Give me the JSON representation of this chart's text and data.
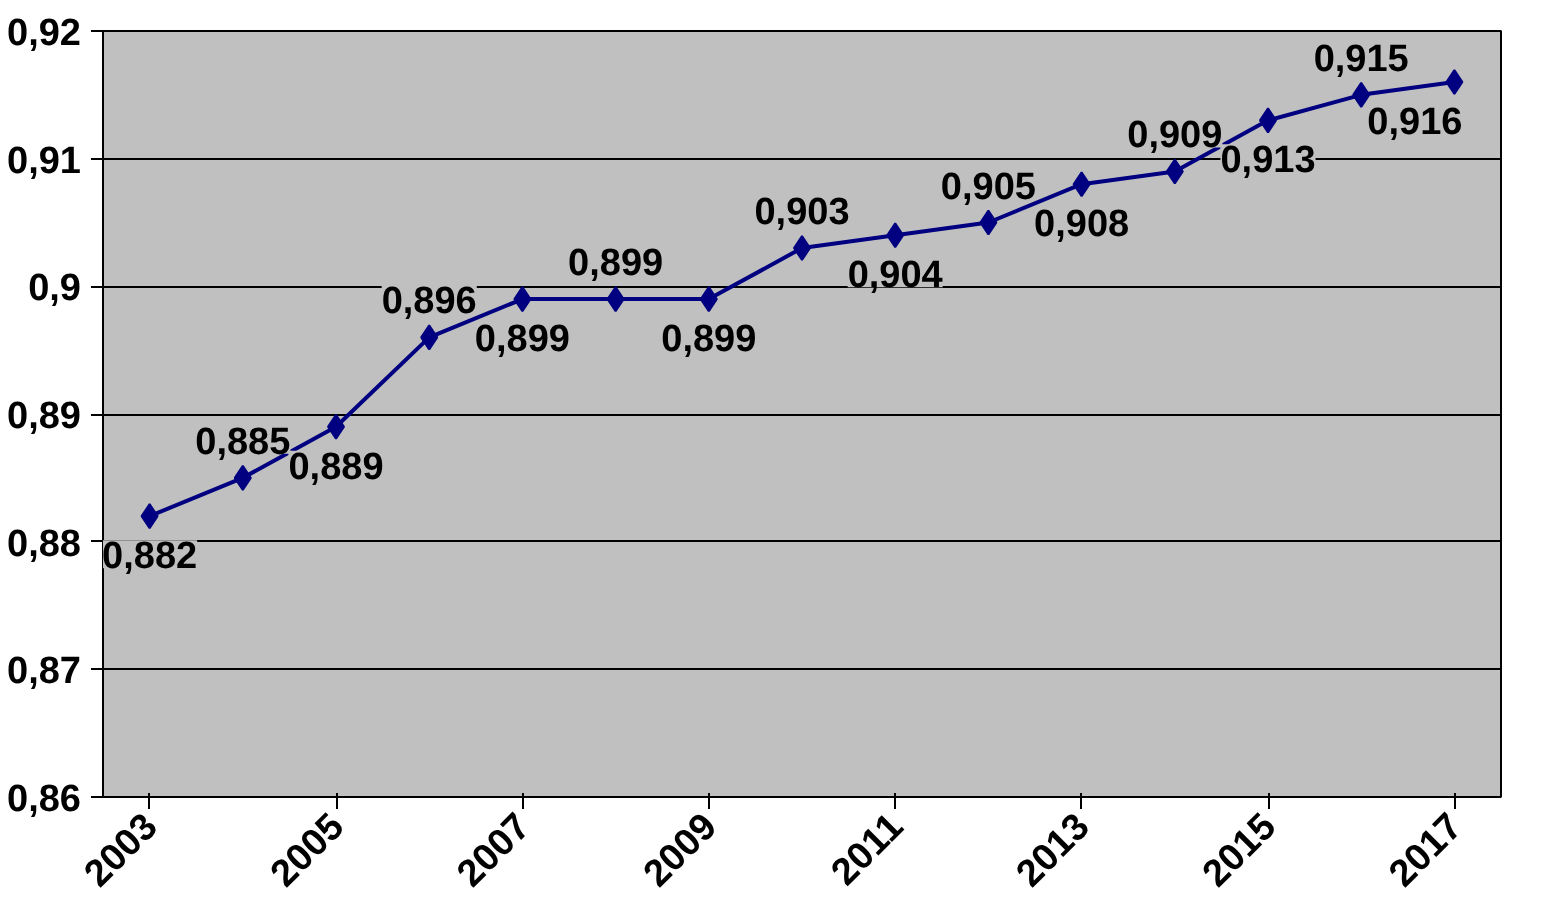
{
  "chart_data": {
    "type": "line",
    "categories": [
      "2003",
      null,
      "2005",
      null,
      "2007",
      null,
      "2009",
      null,
      "2011",
      null,
      "2013",
      null,
      "2015",
      null,
      "2017"
    ],
    "series": [
      {
        "color": "#000080",
        "values": [
          0.882,
          0.885,
          0.889,
          0.896,
          0.899,
          0.899,
          0.899,
          0.903,
          0.904,
          0.905,
          0.908,
          0.909,
          0.913,
          0.915,
          0.916
        ],
        "value_labels": [
          "0,882",
          "0,885",
          "0,889",
          "0,896",
          "0,899",
          "0,899",
          "0,899",
          "0,903",
          "0,904",
          "0,905",
          "0,908",
          "0,909",
          "0,913",
          "0,915",
          "0,916"
        ]
      }
    ],
    "ylim": [
      0.86,
      0.92
    ],
    "yticks": [
      {
        "value": 0.86,
        "label": "0,86"
      },
      {
        "value": 0.87,
        "label": "0,87"
      },
      {
        "value": 0.88,
        "label": "0,88"
      },
      {
        "value": 0.89,
        "label": "0,89"
      },
      {
        "value": 0.9,
        "label": "0,9"
      },
      {
        "value": 0.91,
        "label": "0,91"
      },
      {
        "value": 0.92,
        "label": "0,92"
      }
    ],
    "grid": "y",
    "marker": "diamond",
    "line_style": "solid"
  }
}
